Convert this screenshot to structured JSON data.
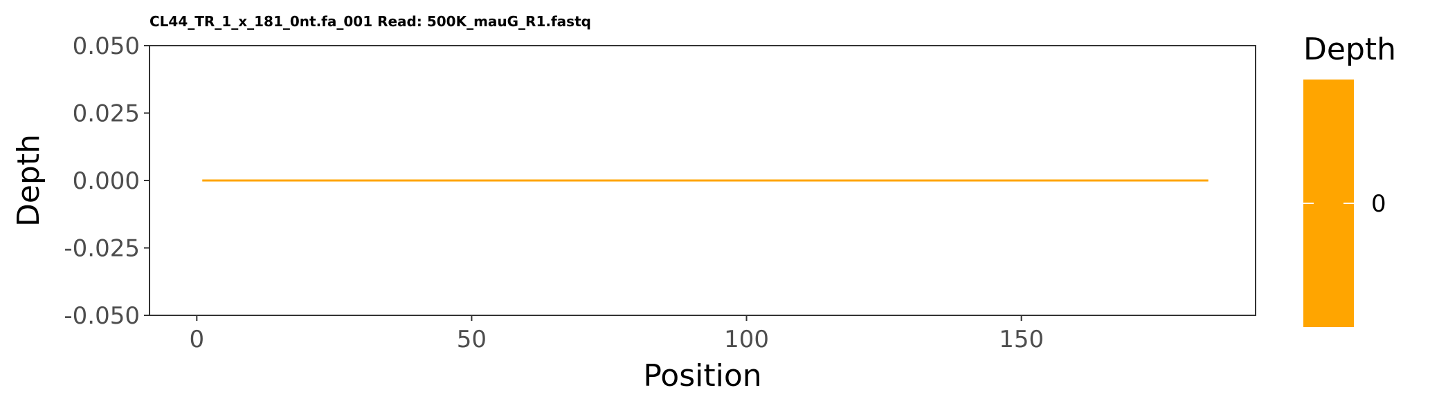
{
  "chart_data": {
    "type": "line",
    "title": "CL44_TR_1_x_181_0nt.fa_001 Read: 500K_mauG_R1.fastq",
    "xlabel": "Position",
    "ylabel": "Depth",
    "xlim": [
      -8.6,
      192.6
    ],
    "ylim": [
      -0.05,
      0.05
    ],
    "x_ticks": [
      0,
      50,
      100,
      150
    ],
    "y_ticks": [
      -0.05,
      -0.025,
      0.0,
      0.025,
      0.05
    ],
    "x_tick_labels": [
      "0",
      "50",
      "100",
      "150"
    ],
    "y_tick_labels": [
      "-0.050",
      "-0.025",
      "0.000",
      "0.025",
      "0.050"
    ],
    "series": [
      {
        "x_start": 1,
        "x_end": 184,
        "y": 0,
        "color": "#FFA500"
      }
    ],
    "grid": false,
    "legend": {
      "title": "Depth",
      "placement": "right",
      "labels": [
        "0"
      ],
      "color": "#FFA500"
    }
  }
}
